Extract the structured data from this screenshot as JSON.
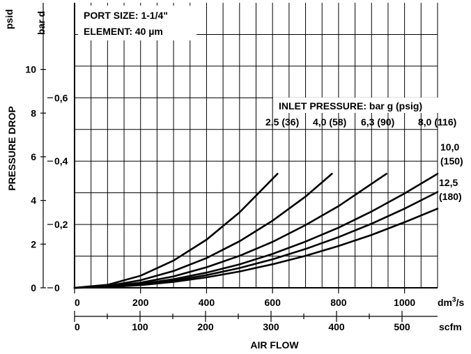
{
  "chart_data": {
    "type": "line",
    "annotations": {
      "port_size": "PORT SIZE: 1-1/4\"",
      "element": "ELEMENT: 40 µm",
      "inlet_title": "INLET PRESSURE: bar g (psig)"
    },
    "ylabel": "PRESSURE DROP",
    "xlabel": "AIR FLOW",
    "y_axes": {
      "psid": {
        "unit_label": "psid",
        "ticks": [
          0,
          2,
          4,
          6,
          8,
          10
        ],
        "tick_labels": [
          "0",
          "2",
          "4",
          "6",
          "8",
          "10"
        ],
        "range": [
          0,
          13.05
        ]
      },
      "bar": {
        "unit_label": "bar d",
        "ticks": [
          0,
          0.2,
          0.4,
          0.6
        ],
        "tick_labels": [
          "0",
          "0,2",
          "0,4",
          "0,6"
        ],
        "range": [
          0,
          0.9
        ]
      }
    },
    "x_axes": {
      "dm3s": {
        "unit_label": "dm³/s",
        "unit_base": "dm",
        "unit_sup": "3",
        "unit_tail": "/s",
        "ticks": [
          0,
          200,
          400,
          600,
          800,
          1000
        ],
        "tick_labels": [
          "0",
          "200",
          "400",
          "600",
          "800",
          "1000"
        ],
        "range": [
          0,
          1100
        ]
      },
      "scfm": {
        "unit_label": "scfm",
        "ticks": [
          0,
          100,
          200,
          300,
          400,
          500
        ],
        "tick_labels": [
          "0",
          "100",
          "200",
          "300",
          "400",
          "500"
        ]
      }
    },
    "grid": true,
    "series": [
      {
        "name": "2,5 (36)",
        "label_lines": [
          "2,5 (36)"
        ],
        "x": [
          0,
          100,
          200,
          300,
          400,
          500,
          615
        ],
        "y": [
          0,
          0.0095,
          0.038,
          0.086,
          0.152,
          0.238,
          0.36
        ]
      },
      {
        "name": "4,0 (58)",
        "label_lines": [
          "4,0 (58)"
        ],
        "x": [
          0,
          100,
          200,
          300,
          400,
          500,
          600,
          700,
          780
        ],
        "y": [
          0,
          0.0059,
          0.024,
          0.053,
          0.094,
          0.147,
          0.212,
          0.288,
          0.36
        ]
      },
      {
        "name": "6,3 (90)",
        "label_lines": [
          "6,3 (90)"
        ],
        "x": [
          0,
          100,
          200,
          300,
          400,
          500,
          600,
          700,
          800,
          945
        ],
        "y": [
          0,
          0.004,
          0.016,
          0.036,
          0.065,
          0.101,
          0.145,
          0.198,
          0.258,
          0.36
        ]
      },
      {
        "name": "8,0 (116)",
        "label_lines": [
          "8,0 (116)"
        ],
        "x": [
          0,
          100,
          200,
          300,
          400,
          500,
          600,
          700,
          800,
          900,
          1000,
          1100
        ],
        "y": [
          0,
          0.003,
          0.012,
          0.027,
          0.048,
          0.074,
          0.107,
          0.146,
          0.19,
          0.241,
          0.298,
          0.36
        ]
      },
      {
        "name": "10,0 (150)",
        "label_lines": [
          "10,0",
          "(150)"
        ],
        "x": [
          0,
          100,
          200,
          300,
          400,
          500,
          600,
          700,
          800,
          900,
          1000,
          1100
        ],
        "y": [
          0,
          0.0025,
          0.01,
          0.0225,
          0.04,
          0.0625,
          0.09,
          0.1225,
          0.16,
          0.2025,
          0.25,
          0.3025
        ]
      },
      {
        "name": "12,5 (180)",
        "label_lines": [
          "12,5",
          "(180)"
        ],
        "x": [
          0,
          100,
          200,
          300,
          400,
          500,
          600,
          700,
          800,
          900,
          1000,
          1100
        ],
        "y": [
          0,
          0.0021,
          0.0083,
          0.0186,
          0.033,
          0.0516,
          0.0744,
          0.101,
          0.132,
          0.167,
          0.207,
          0.25
        ]
      }
    ]
  }
}
